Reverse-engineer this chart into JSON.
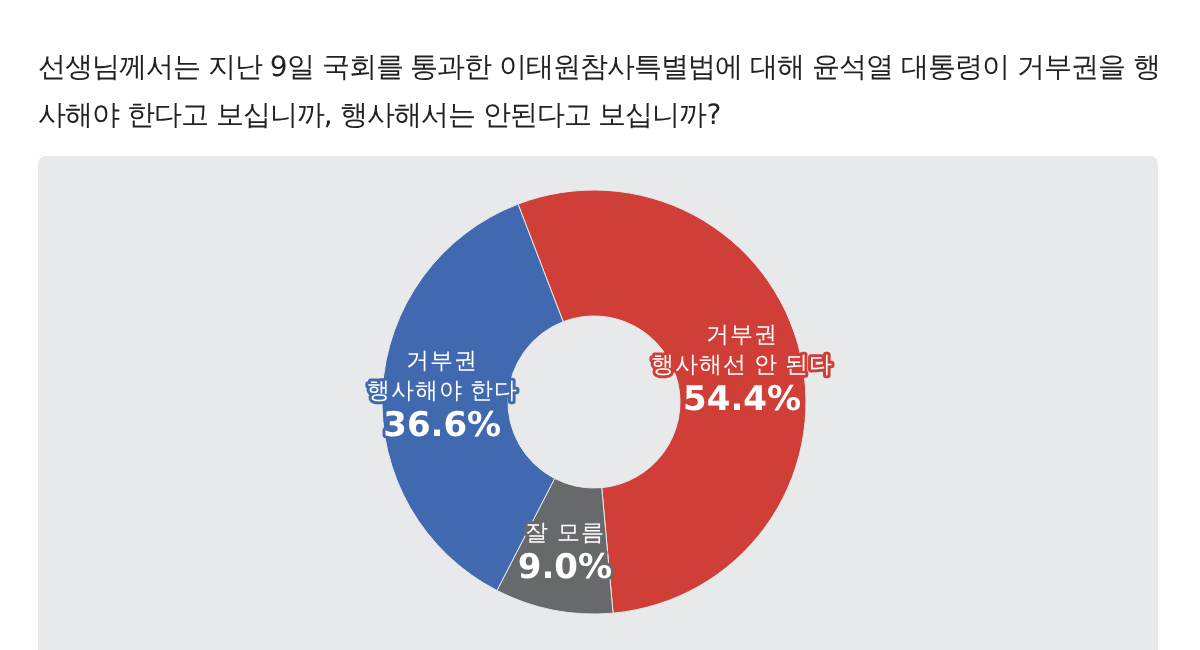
{
  "chart_data": {
    "type": "donut",
    "title": "선생님께서는 지난 9일 국회를 통과한 이태원참사특별법에 대해 윤석열 대통령이 거부권을 행사해야 한다고 보십니까, 행사해서는 안된다고 보십니까?",
    "categories": [
      "거부권\n행사해선 안 된다",
      "잘 모름",
      "거부권\n행사해야 한다"
    ],
    "values": [
      54.4,
      9.0,
      36.6
    ],
    "value_labels": [
      "54.4%",
      "9.0%",
      "36.6%"
    ],
    "colors": [
      "#cf3f37",
      "#68696d",
      "#4069b0"
    ]
  }
}
